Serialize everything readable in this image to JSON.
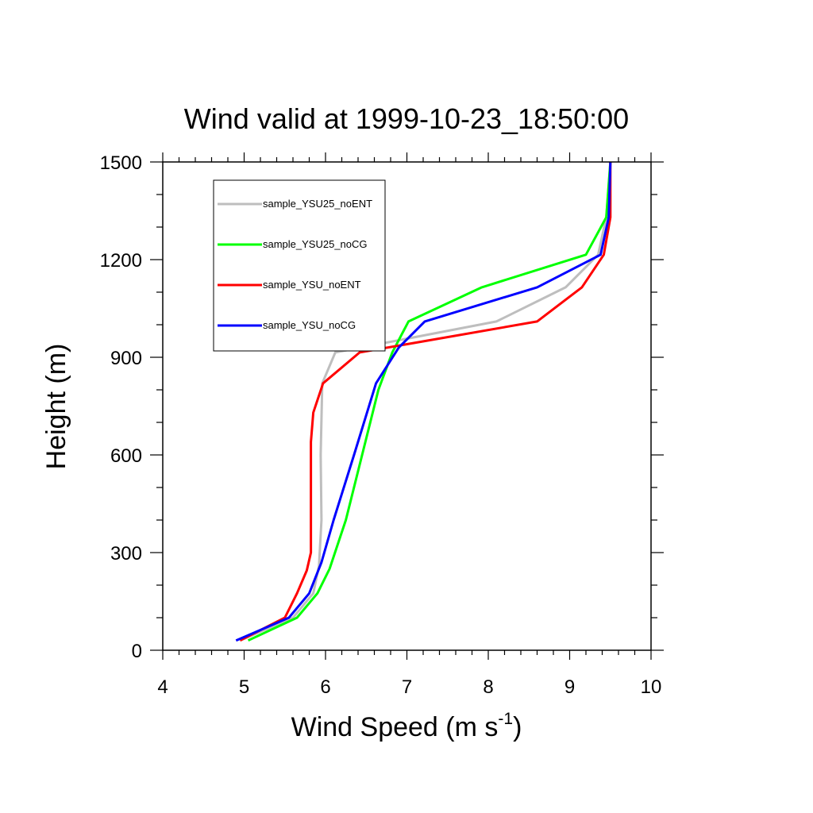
{
  "chart_data": {
    "type": "line",
    "title": "Wind valid at 1999-10-23_18:50:00",
    "xlabel": "Wind Speed (m s",
    "xlabel_sup": "-1",
    "xlabel_end": ")",
    "ylabel": "Height (m)",
    "xlim": [
      4,
      10
    ],
    "ylim": [
      0,
      1500
    ],
    "xticks": [
      "4",
      "5",
      "6",
      "7",
      "8",
      "9",
      "10"
    ],
    "yticks": [
      "0",
      "300",
      "600",
      "900",
      "1200",
      "1500"
    ],
    "grid": false,
    "legend_position": "top-left",
    "series": [
      {
        "name": "sample_YSU25_noENT",
        "color": "#bebebe",
        "points": [
          [
            4.95,
            30
          ],
          [
            5.6,
            100
          ],
          [
            5.85,
            175
          ],
          [
            5.92,
            260
          ],
          [
            5.95,
            400
          ],
          [
            5.94,
            600
          ],
          [
            5.96,
            820
          ],
          [
            6.12,
            915
          ],
          [
            8.1,
            1010
          ],
          [
            8.95,
            1115
          ],
          [
            9.35,
            1215
          ],
          [
            9.45,
            1330
          ],
          [
            9.5,
            1500
          ]
        ]
      },
      {
        "name": "sample_YSU25_noCG",
        "color": "#00ff00",
        "points": [
          [
            5.05,
            30
          ],
          [
            5.65,
            100
          ],
          [
            5.9,
            175
          ],
          [
            6.05,
            250
          ],
          [
            6.25,
            400
          ],
          [
            6.45,
            600
          ],
          [
            6.65,
            800
          ],
          [
            6.82,
            915
          ],
          [
            7.02,
            1010
          ],
          [
            7.92,
            1115
          ],
          [
            9.2,
            1215
          ],
          [
            9.45,
            1330
          ],
          [
            9.5,
            1500
          ]
        ]
      },
      {
        "name": "sample_YSU_noENT",
        "color": "#ff0000",
        "points": [
          [
            4.95,
            30
          ],
          [
            5.5,
            100
          ],
          [
            5.65,
            175
          ],
          [
            5.77,
            245
          ],
          [
            5.82,
            300
          ],
          [
            5.82,
            500
          ],
          [
            5.82,
            640
          ],
          [
            5.85,
            730
          ],
          [
            5.97,
            820
          ],
          [
            6.42,
            915
          ],
          [
            8.6,
            1010
          ],
          [
            9.15,
            1115
          ],
          [
            9.42,
            1215
          ],
          [
            9.5,
            1330
          ],
          [
            9.5,
            1500
          ]
        ]
      },
      {
        "name": "sample_YSU_noCG",
        "color": "#0000ff",
        "points": [
          [
            4.9,
            30
          ],
          [
            5.55,
            100
          ],
          [
            5.8,
            175
          ],
          [
            5.95,
            270
          ],
          [
            6.1,
            400
          ],
          [
            6.35,
            600
          ],
          [
            6.62,
            820
          ],
          [
            6.9,
            930
          ],
          [
            7.22,
            1010
          ],
          [
            8.6,
            1115
          ],
          [
            9.38,
            1215
          ],
          [
            9.48,
            1330
          ],
          [
            9.5,
            1500
          ]
        ]
      }
    ]
  }
}
